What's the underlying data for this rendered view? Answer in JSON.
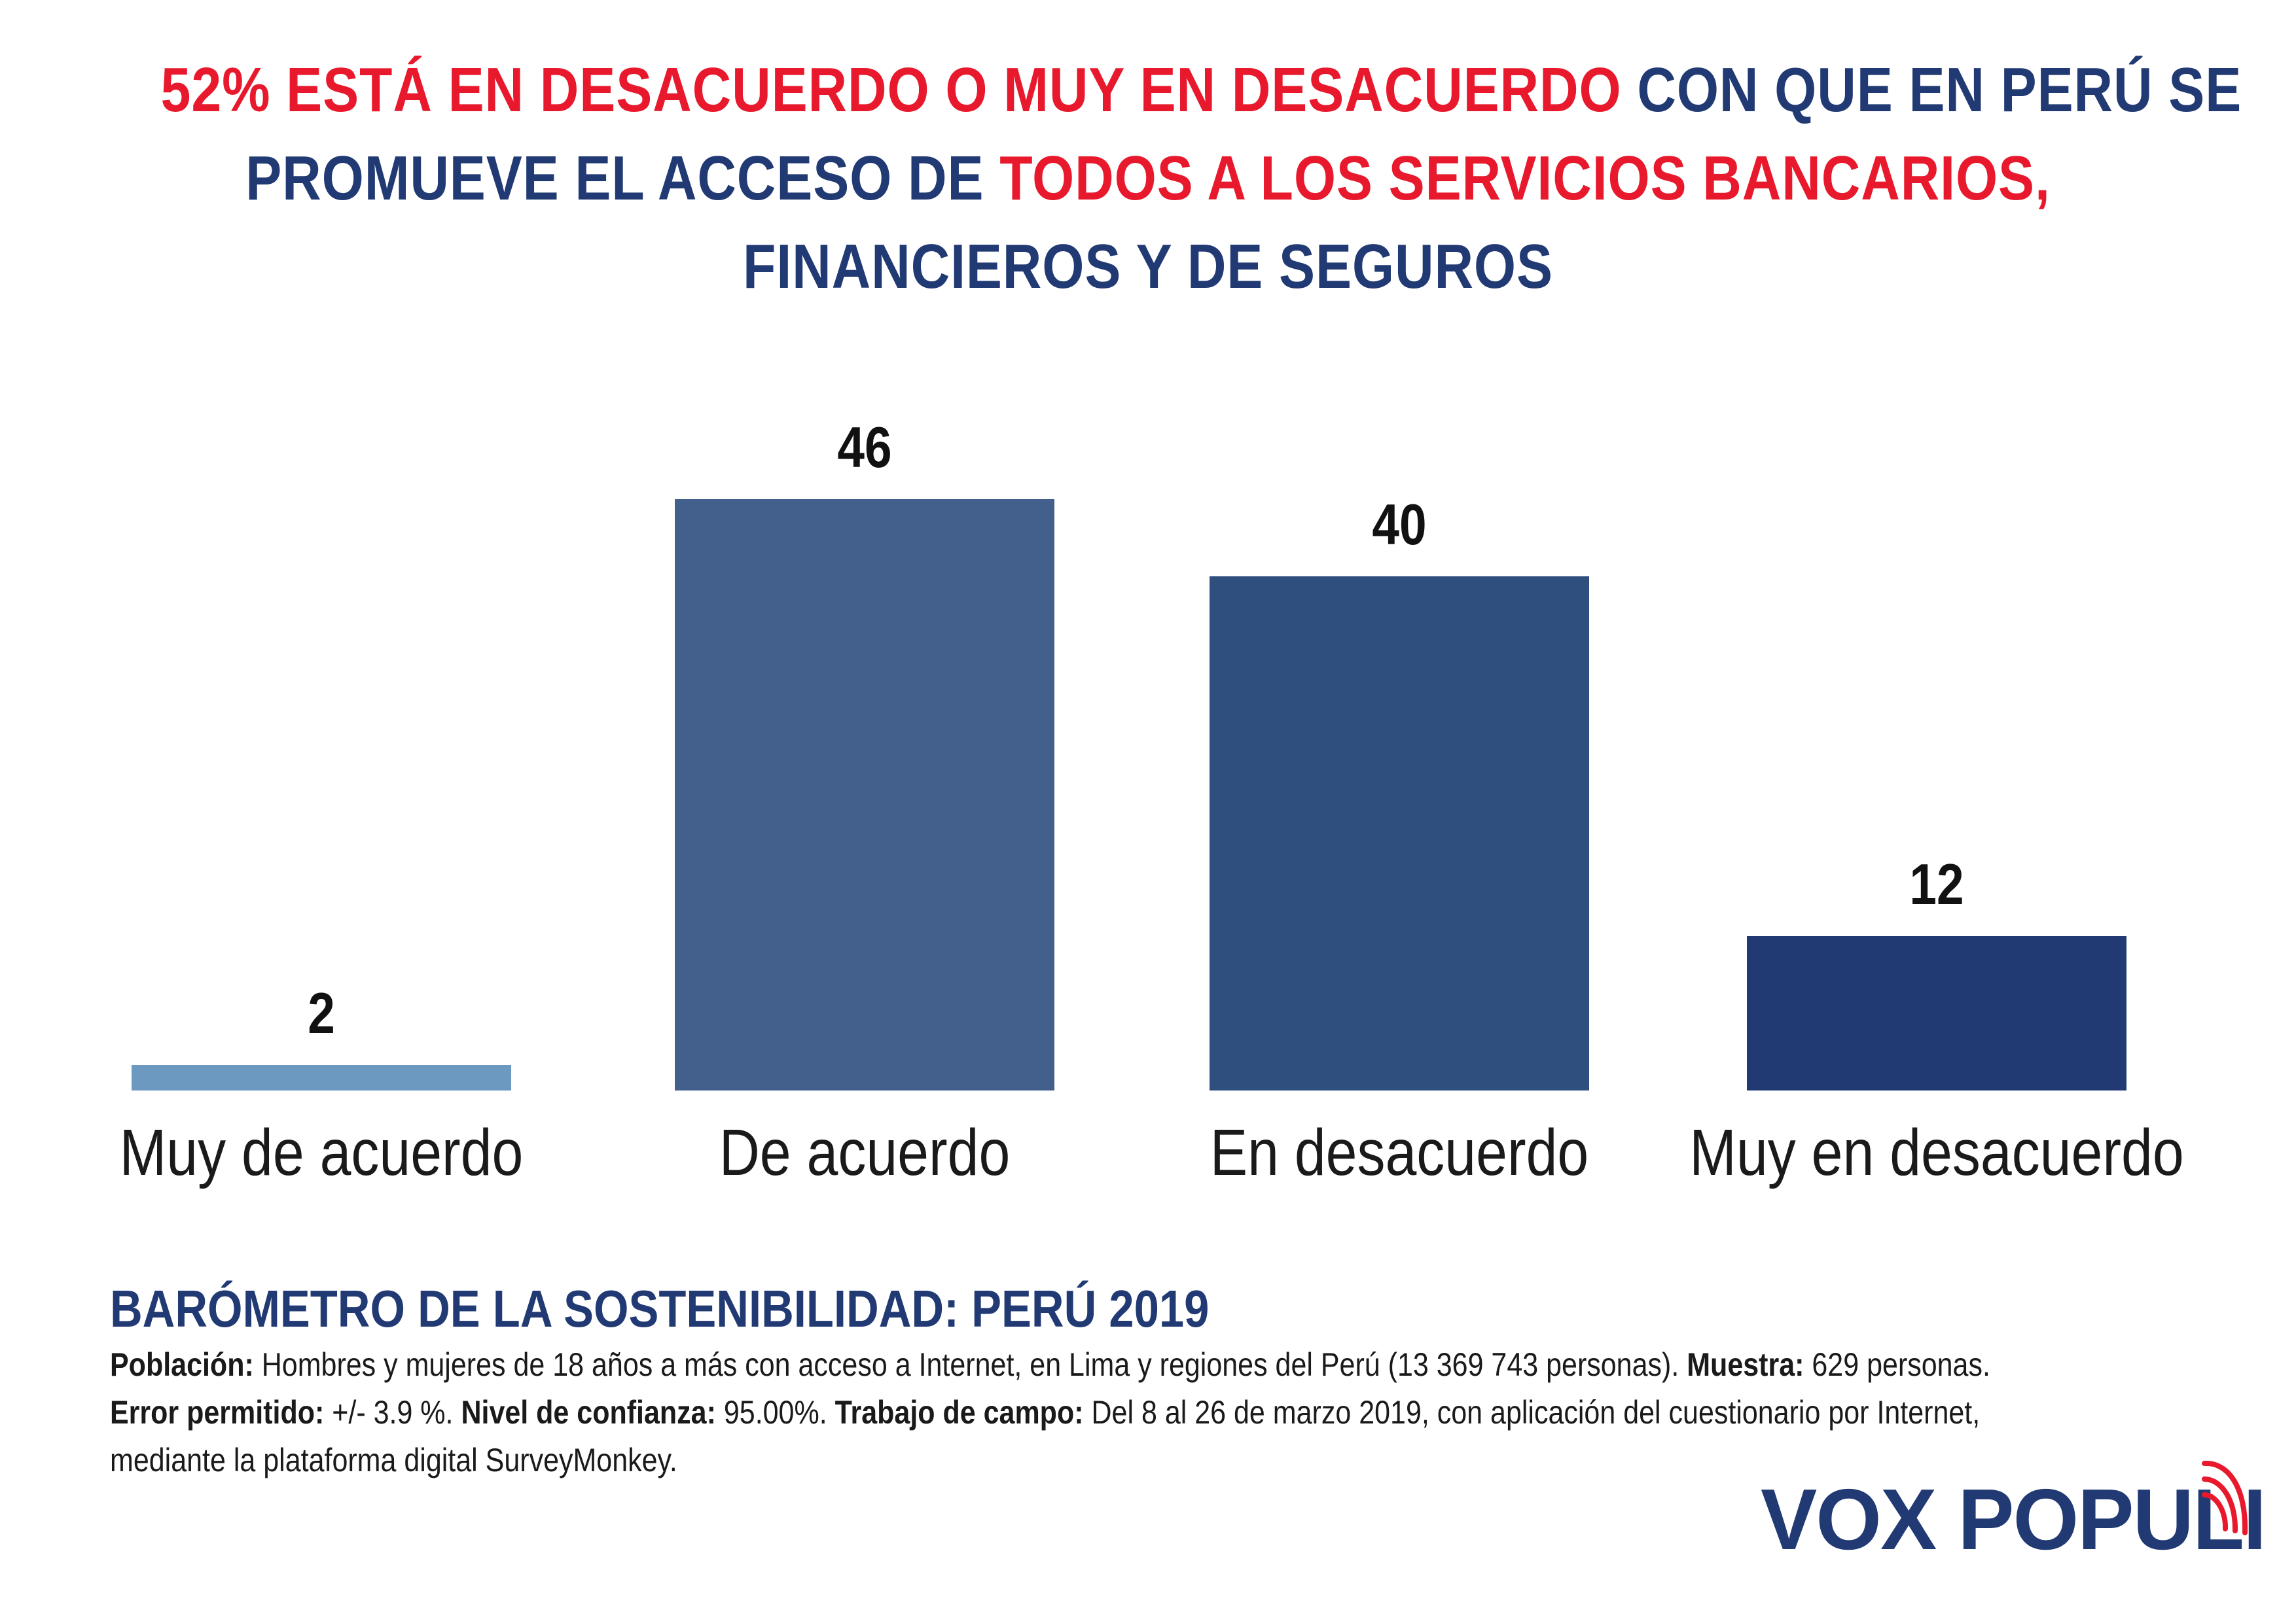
{
  "title": {
    "lines": [
      [
        {
          "text": "52% ESTÁ EN DESACUERDO O MUY EN DESACUERDO ",
          "color": "red"
        },
        {
          "text": "CON QUE EN PERÚ SE",
          "color": "navy"
        }
      ],
      [
        {
          "text": "PROMUEVE EL ACCESO DE ",
          "color": "navy"
        },
        {
          "text": "TODOS A LOS SERVICIOS BANCARIOS,",
          "color": "red"
        }
      ],
      [
        {
          "text": "FINANCIEROS Y DE SEGUROS",
          "color": "navy"
        }
      ]
    ]
  },
  "colors": {
    "red": "#e8192c",
    "navy": "#213a73"
  },
  "chart_data": {
    "type": "bar",
    "title": "52% ESTÁ EN DESACUERDO O MUY EN DESACUERDO CON QUE EN PERÚ SE PROMUEVE EL ACCESO DE TODOS A LOS SERVICIOS BANCARIOS, FINANCIEROS Y DE SEGUROS",
    "categories": [
      "Muy de acuerdo",
      "De acuerdo",
      "En desacuerdo",
      "Muy en desacuerdo"
    ],
    "values": [
      2,
      46,
      40,
      12
    ],
    "value_labels": [
      "2",
      "46",
      "40",
      "12"
    ],
    "bar_colors": [
      "#6b99c0",
      "#42608b",
      "#2f4f7e",
      "#213a73"
    ],
    "xlabel": "",
    "ylabel": "",
    "ylim": [
      0,
      46
    ],
    "grid": false,
    "legend": "none"
  },
  "footer": {
    "heading": "BARÓMETRO DE LA SOSTENIBILIDAD: PERÚ 2019",
    "poblacion_label": "Población:",
    "poblacion_text": " Hombres y mujeres de 18 años a más con acceso a Internet, en Lima y regiones del Perú (13 369 743 personas). ",
    "muestra_label": "Muestra:",
    "muestra_text": " 629 personas.",
    "error_label": "Error permitido:",
    "error_text": " +/- 3.9 %. ",
    "confianza_label": "Nivel de confianza:",
    "confianza_text": " 95.00%. ",
    "campo_label": "Trabajo de campo:",
    "campo_text": " Del 8 al 26 de marzo 2019, con aplicación del cuestionario por Internet,",
    "line3": "mediante la plataforma digital SurveyMonkey."
  },
  "logo": {
    "text": "VOX POPULI",
    "icon": "signal-waves-icon"
  }
}
